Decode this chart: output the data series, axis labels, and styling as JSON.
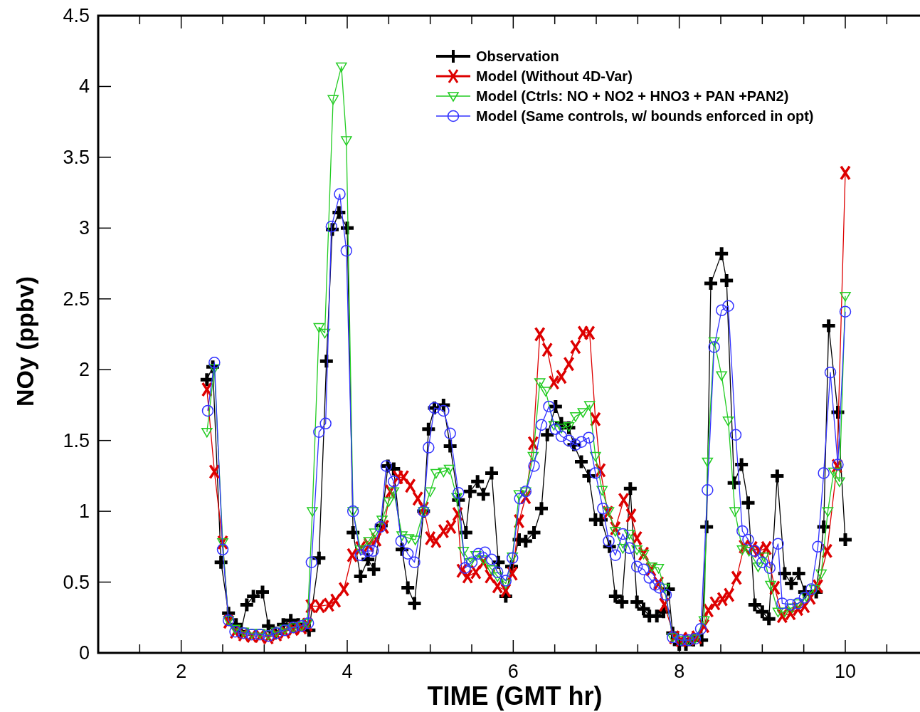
{
  "chart_data": {
    "type": "line",
    "xlabel": "TIME (GMT hr)",
    "ylabel": "NOy (ppbv)",
    "xlim": [
      1,
      10.9
    ],
    "ylim": [
      0,
      4.5
    ],
    "xticks": [
      {
        "value": 1.5,
        "label": null
      },
      2,
      {
        "value": 2.5,
        "label": null
      },
      {
        "value": 3,
        "label": null
      },
      {
        "value": 3.5,
        "label": null
      },
      4,
      {
        "value": 4.5,
        "label": null
      },
      {
        "value": 5,
        "label": null
      },
      {
        "value": 5.5,
        "label": null
      },
      6,
      {
        "value": 6.5,
        "label": null
      },
      {
        "value": 7,
        "label": null
      },
      {
        "value": 7.5,
        "label": null
      },
      8,
      {
        "value": 8.5,
        "label": null
      },
      {
        "value": 9,
        "label": null
      },
      {
        "value": 9.5,
        "label": null
      },
      10,
      {
        "value": 10.5,
        "label": null
      }
    ],
    "yticks": [
      0,
      0.5,
      1,
      1.5,
      2,
      2.5,
      3,
      3.5,
      4,
      4.5
    ],
    "grid": false,
    "legend": "top right",
    "series": [
      {
        "name": "Observation",
        "color": "#000000",
        "marker": "plus",
        "x": [
          2.31,
          2.38,
          2.48,
          2.57,
          2.66,
          2.72,
          2.79,
          2.87,
          2.98,
          3.05,
          3.13,
          3.23,
          3.32,
          3.41,
          3.54,
          3.66,
          3.75,
          3.82,
          3.9,
          4.0,
          4.07,
          4.16,
          4.25,
          4.32,
          4.41,
          4.49,
          4.56,
          4.66,
          4.73,
          4.81,
          4.92,
          4.98,
          5.05,
          5.16,
          5.24,
          5.34,
          5.43,
          5.48,
          5.57,
          5.64,
          5.74,
          5.82,
          5.91,
          5.98,
          6.07,
          6.15,
          6.25,
          6.34,
          6.41,
          6.51,
          6.58,
          6.67,
          6.73,
          6.82,
          6.91,
          6.99,
          7.06,
          7.16,
          7.23,
          7.31,
          7.41,
          7.49,
          7.57,
          7.64,
          7.73,
          7.81,
          7.87,
          7.92,
          8.0,
          8.08,
          8.17,
          8.27,
          8.33,
          8.38,
          8.51,
          8.57,
          8.66,
          8.75,
          8.83,
          8.91,
          9.0,
          9.08,
          9.18,
          9.27,
          9.35,
          9.44,
          9.51,
          9.65,
          9.74,
          9.8,
          9.91,
          10.0
        ],
        "values": [
          1.93,
          2.02,
          0.64,
          0.28,
          0.2,
          0.15,
          0.34,
          0.4,
          0.43,
          0.19,
          0.14,
          0.2,
          0.23,
          0.2,
          0.16,
          0.67,
          2.06,
          2.99,
          3.11,
          3.0,
          0.85,
          0.54,
          0.66,
          0.59,
          0.9,
          1.32,
          1.3,
          0.73,
          0.46,
          0.35,
          1.0,
          1.58,
          1.73,
          1.75,
          1.46,
          1.08,
          0.85,
          1.14,
          1.21,
          1.12,
          1.27,
          0.64,
          0.4,
          0.61,
          0.8,
          0.79,
          0.85,
          1.02,
          1.54,
          1.74,
          1.62,
          1.59,
          1.47,
          1.35,
          1.25,
          0.94,
          0.94,
          0.75,
          0.4,
          0.36,
          1.16,
          0.36,
          0.31,
          0.26,
          0.26,
          0.29,
          0.45,
          0.14,
          0.06,
          0.06,
          0.09,
          0.09,
          0.89,
          2.61,
          2.82,
          2.63,
          1.2,
          1.33,
          1.06,
          0.34,
          0.29,
          0.24,
          1.25,
          0.56,
          0.49,
          0.56,
          0.43,
          0.43,
          0.89,
          2.31,
          1.7,
          0.8
        ]
      },
      {
        "name": "Model (Without 4D-Var)",
        "color": "#dd0000",
        "marker": "cross",
        "x": [
          2.31,
          2.4,
          2.5,
          2.57,
          2.65,
          2.75,
          2.85,
          2.95,
          3.05,
          3.15,
          3.25,
          3.35,
          3.45,
          3.52,
          3.56,
          3.67,
          3.78,
          3.86,
          3.96,
          4.06,
          4.16,
          4.26,
          4.35,
          4.44,
          4.52,
          4.61,
          4.68,
          4.76,
          4.85,
          4.92,
          5.0,
          5.07,
          5.16,
          5.25,
          5.33,
          5.38,
          5.45,
          5.55,
          5.64,
          5.72,
          5.81,
          5.91,
          5.99,
          6.07,
          6.15,
          6.24,
          6.32,
          6.41,
          6.49,
          6.58,
          6.67,
          6.75,
          6.84,
          6.92,
          6.99,
          7.05,
          7.14,
          7.23,
          7.33,
          7.42,
          7.49,
          7.57,
          7.66,
          7.75,
          7.82,
          7.94,
          8.02,
          8.12,
          8.21,
          8.3,
          8.35,
          8.43,
          8.52,
          8.6,
          8.69,
          8.78,
          8.88,
          8.96,
          9.05,
          9.15,
          9.24,
          9.34,
          9.43,
          9.51,
          9.58,
          9.67,
          9.78,
          9.9,
          10.0
        ],
        "values": [
          1.86,
          1.28,
          0.78,
          0.22,
          0.15,
          0.13,
          0.12,
          0.12,
          0.11,
          0.13,
          0.15,
          0.17,
          0.18,
          0.2,
          0.33,
          0.33,
          0.34,
          0.37,
          0.45,
          0.69,
          0.74,
          0.76,
          0.8,
          0.89,
          1.14,
          1.24,
          1.24,
          1.18,
          1.09,
          1.02,
          0.81,
          0.79,
          0.86,
          0.89,
          0.98,
          0.58,
          0.54,
          0.57,
          0.64,
          0.54,
          0.47,
          0.44,
          0.56,
          0.93,
          1.1,
          1.48,
          2.25,
          2.14,
          1.91,
          1.95,
          2.04,
          2.16,
          2.26,
          2.26,
          1.65,
          1.29,
          0.99,
          0.88,
          1.08,
          0.97,
          0.81,
          0.7,
          0.59,
          0.49,
          0.34,
          0.11,
          0.09,
          0.1,
          0.11,
          0.19,
          0.3,
          0.35,
          0.38,
          0.41,
          0.53,
          0.75,
          0.74,
          0.72,
          0.74,
          0.46,
          0.26,
          0.28,
          0.31,
          0.33,
          0.39,
          0.47,
          0.72,
          1.32,
          3.39
        ]
      },
      {
        "name": "Model (Ctrls: NO + NO2 + HNO3 + PAN +PAN2)",
        "color": "#22cc22",
        "marker": "triangle",
        "x": [
          2.31,
          2.4,
          2.5,
          2.57,
          2.65,
          2.75,
          2.85,
          2.95,
          3.05,
          3.15,
          3.25,
          3.35,
          3.45,
          3.52,
          3.58,
          3.66,
          3.73,
          3.83,
          3.93,
          3.99,
          4.07,
          4.16,
          4.26,
          4.33,
          4.42,
          4.5,
          4.56,
          4.66,
          4.74,
          4.82,
          4.92,
          5.0,
          5.07,
          5.16,
          5.23,
          5.32,
          5.4,
          5.48,
          5.55,
          5.64,
          5.74,
          5.81,
          5.91,
          5.99,
          6.07,
          6.15,
          6.24,
          6.32,
          6.39,
          6.49,
          6.58,
          6.67,
          6.75,
          6.84,
          6.92,
          6.99,
          7.07,
          7.15,
          7.23,
          7.32,
          7.4,
          7.49,
          7.57,
          7.67,
          7.75,
          7.82,
          7.92,
          8.02,
          8.11,
          8.19,
          8.3,
          8.34,
          8.42,
          8.51,
          8.59,
          8.67,
          8.76,
          8.84,
          8.95,
          9.02,
          9.1,
          9.19,
          9.27,
          9.36,
          9.44,
          9.53,
          9.63,
          9.71,
          9.79,
          9.86,
          9.93,
          10.0
        ],
        "values": [
          1.56,
          2.01,
          0.78,
          0.23,
          0.17,
          0.15,
          0.14,
          0.14,
          0.13,
          0.15,
          0.17,
          0.18,
          0.19,
          0.21,
          1.0,
          2.3,
          2.26,
          3.91,
          4.14,
          3.62,
          1.0,
          0.73,
          0.79,
          0.85,
          0.94,
          1.07,
          1.14,
          0.83,
          0.81,
          0.8,
          1.0,
          1.14,
          1.27,
          1.28,
          1.3,
          1.1,
          0.72,
          0.64,
          0.69,
          0.66,
          0.59,
          0.54,
          0.49,
          0.68,
          1.12,
          1.14,
          1.39,
          1.91,
          1.85,
          1.61,
          1.59,
          1.6,
          1.67,
          1.7,
          1.75,
          1.39,
          1.15,
          1.0,
          0.86,
          0.74,
          0.84,
          0.73,
          0.7,
          0.61,
          0.6,
          0.46,
          0.11,
          0.09,
          0.09,
          0.1,
          0.23,
          1.35,
          2.2,
          1.96,
          1.64,
          1.0,
          0.73,
          0.72,
          0.61,
          0.68,
          0.48,
          0.29,
          0.29,
          0.32,
          0.35,
          0.4,
          0.45,
          0.56,
          1.0,
          1.28,
          1.21,
          2.52
        ]
      },
      {
        "name": "Model (Same controls, w/ bounds enforced in opt)",
        "color": "#3333ff",
        "marker": "circle",
        "x": [
          2.32,
          2.4,
          2.5,
          2.57,
          2.65,
          2.75,
          2.85,
          2.95,
          3.05,
          3.15,
          3.25,
          3.35,
          3.45,
          3.53,
          3.57,
          3.66,
          3.74,
          3.81,
          3.91,
          3.99,
          4.07,
          4.16,
          4.25,
          4.31,
          4.4,
          4.47,
          4.56,
          4.65,
          4.73,
          4.81,
          4.92,
          4.98,
          5.05,
          5.16,
          5.24,
          5.34,
          5.42,
          5.5,
          5.58,
          5.66,
          5.74,
          5.81,
          5.91,
          5.99,
          6.08,
          6.15,
          6.25,
          6.34,
          6.43,
          6.51,
          6.58,
          6.67,
          6.75,
          6.82,
          6.91,
          6.99,
          7.08,
          7.15,
          7.23,
          7.32,
          7.4,
          7.49,
          7.57,
          7.64,
          7.71,
          7.76,
          7.84,
          7.92,
          8.02,
          8.11,
          8.19,
          8.26,
          8.34,
          8.42,
          8.51,
          8.59,
          8.68,
          8.76,
          8.83,
          8.91,
          9.0,
          9.09,
          9.19,
          9.24,
          9.34,
          9.43,
          9.51,
          9.59,
          9.67,
          9.74,
          9.82,
          9.91,
          10.0
        ],
        "values": [
          1.71,
          2.05,
          0.73,
          0.23,
          0.15,
          0.14,
          0.13,
          0.13,
          0.12,
          0.14,
          0.16,
          0.18,
          0.19,
          0.21,
          0.64,
          1.56,
          1.62,
          3.01,
          3.24,
          2.84,
          1.0,
          0.69,
          0.72,
          0.72,
          0.89,
          1.32,
          1.21,
          0.79,
          0.7,
          0.64,
          1.0,
          1.45,
          1.73,
          1.71,
          1.55,
          1.13,
          0.6,
          0.64,
          0.7,
          0.71,
          0.66,
          0.57,
          0.51,
          0.67,
          1.09,
          1.14,
          1.32,
          1.61,
          1.74,
          1.58,
          1.53,
          1.5,
          1.47,
          1.49,
          1.52,
          1.27,
          1.02,
          0.79,
          0.69,
          0.84,
          0.74,
          0.61,
          0.59,
          0.53,
          0.48,
          0.46,
          0.41,
          0.11,
          0.09,
          0.09,
          0.1,
          0.17,
          1.15,
          2.16,
          2.42,
          2.45,
          1.54,
          0.86,
          0.8,
          0.72,
          0.64,
          0.6,
          0.77,
          0.35,
          0.34,
          0.35,
          0.39,
          0.45,
          0.75,
          1.27,
          1.98,
          1.33,
          2.41
        ]
      }
    ]
  }
}
